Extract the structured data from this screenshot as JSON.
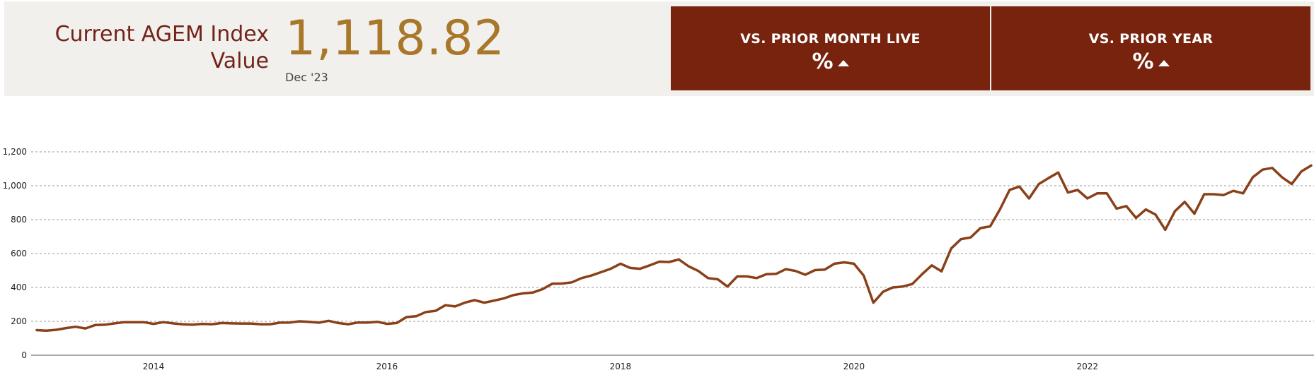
{
  "header": {
    "title": "Current AGEM Index Value",
    "value": "1,118.82",
    "date": "Dec '23"
  },
  "cards": {
    "month": {
      "title": "VS. PRIOR MONTH LIVE",
      "value": "%"
    },
    "year": {
      "title": "VS. PRIOR YEAR",
      "value": "%"
    }
  },
  "colors": {
    "line": "#8a4019",
    "card_bg": "#77230d",
    "title_text": "#72241b",
    "value_text": "#a8772a",
    "panel_bg": "#f1f0ec"
  },
  "chart_data": {
    "type": "line",
    "title": "",
    "xlabel": "",
    "ylabel": "",
    "ylim": [
      0,
      1200
    ],
    "y_ticks": [
      "0",
      "200",
      "400",
      "600",
      "800",
      "1,000",
      "1,200"
    ],
    "x_ticks": [
      "2014",
      "2016",
      "2018",
      "2020",
      "2022"
    ],
    "grid": "horizontal dashed",
    "x_start": "2013-01",
    "x_end": "2023-12",
    "series": [
      {
        "values": [
          148,
          145,
          150,
          160,
          168,
          158,
          178,
          180,
          188,
          195,
          195,
          195,
          185,
          195,
          188,
          183,
          180,
          185,
          183,
          190,
          188,
          187,
          187,
          183,
          183,
          192,
          193,
          200,
          197,
          192,
          203,
          190,
          183,
          193,
          193,
          197,
          185,
          190,
          225,
          230,
          255,
          262,
          295,
          288,
          310,
          325,
          310,
          322,
          335,
          355,
          365,
          370,
          390,
          422,
          423,
          430,
          455,
          470,
          490,
          510,
          540,
          515,
          510,
          530,
          552,
          550,
          565,
          525,
          497,
          455,
          448,
          405,
          465,
          465,
          455,
          478,
          480,
          508,
          497,
          475,
          502,
          505,
          540,
          548,
          540,
          470,
          310,
          375,
          400,
          405,
          420,
          478,
          530,
          495,
          630,
          685,
          695,
          750,
          760,
          860,
          975,
          995,
          925,
          1010,
          1045,
          1078,
          960,
          975,
          925,
          955,
          955,
          865,
          880,
          810,
          860,
          830,
          740,
          850,
          905,
          835,
          950,
          950,
          945,
          970,
          955,
          1050,
          1095,
          1105,
          1050,
          1010,
          1085,
          1119
        ]
      }
    ]
  }
}
